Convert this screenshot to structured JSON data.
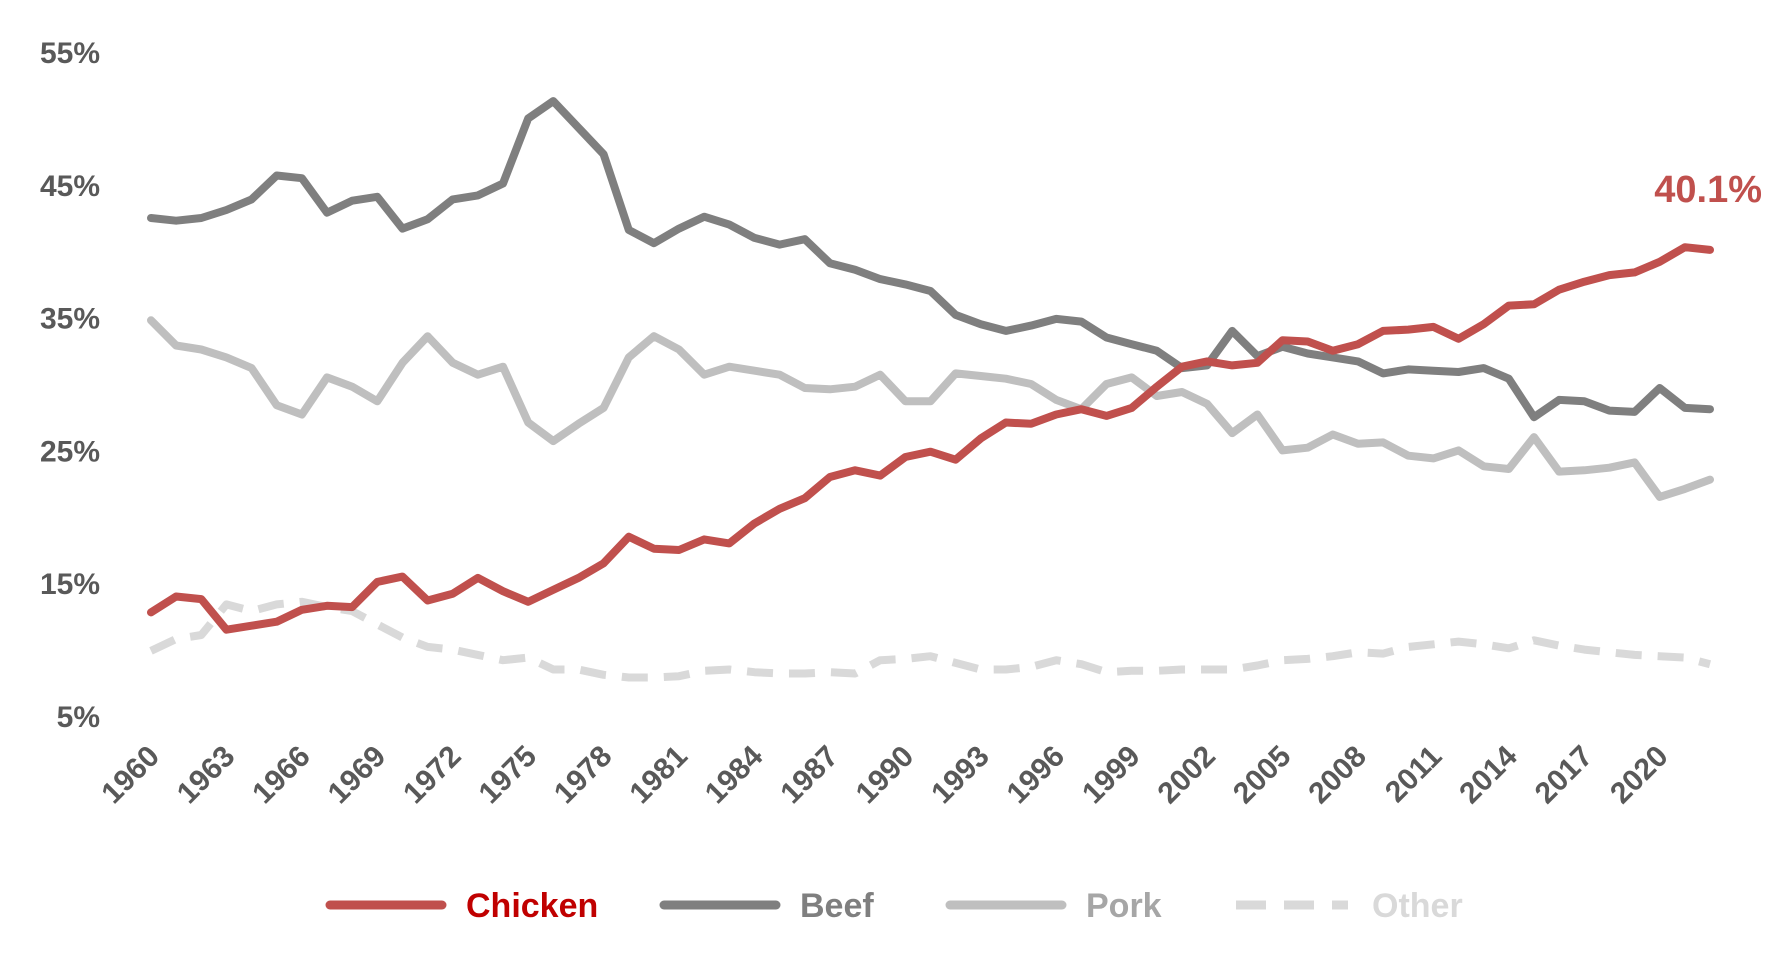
{
  "chart_data": {
    "type": "line",
    "title": "",
    "xlabel": "",
    "ylabel": "",
    "ylim": [
      5,
      55
    ],
    "yticks": [
      "55%",
      "45%",
      "35%",
      "25%",
      "15%",
      "5%"
    ],
    "ytick_values": [
      55,
      45,
      35,
      25,
      15,
      5
    ],
    "xlim": [
      1960,
      2022
    ],
    "xticks": [
      "1960",
      "1963",
      "1966",
      "1969",
      "1972",
      "1975",
      "1978",
      "1981",
      "1984",
      "1987",
      "1990",
      "1993",
      "1996",
      "1999",
      "2002",
      "2005",
      "2008",
      "2011",
      "2014",
      "2017",
      "2020"
    ],
    "xtick_values": [
      1960,
      1963,
      1966,
      1969,
      1972,
      1975,
      1978,
      1981,
      1984,
      1987,
      1990,
      1993,
      1996,
      1999,
      2002,
      2005,
      2008,
      2011,
      2014,
      2017,
      2020
    ],
    "grid": false,
    "legend_position": "bottom",
    "annotation": {
      "text": "40.1%",
      "x": 2022,
      "y": 40.1,
      "color": "#c0504d"
    },
    "x": [
      1960,
      1961,
      1962,
      1963,
      1964,
      1965,
      1966,
      1967,
      1968,
      1969,
      1970,
      1971,
      1972,
      1973,
      1974,
      1975,
      1976,
      1977,
      1978,
      1979,
      1980,
      1981,
      1982,
      1983,
      1984,
      1985,
      1986,
      1987,
      1988,
      1989,
      1990,
      1991,
      1992,
      1993,
      1994,
      1995,
      1996,
      1997,
      1998,
      1999,
      2000,
      2001,
      2002,
      2003,
      2004,
      2005,
      2006,
      2007,
      2008,
      2009,
      2010,
      2011,
      2012,
      2013,
      2014,
      2015,
      2016,
      2017,
      2018,
      2019,
      2020,
      2021,
      2022
    ],
    "series": [
      {
        "name": "Chicken",
        "color": "#c0504d",
        "label_color": "#c00000",
        "dash": false,
        "values": [
          12.8,
          14.0,
          13.8,
          11.5,
          11.8,
          12.1,
          13.0,
          13.3,
          13.2,
          15.1,
          15.5,
          13.7,
          14.2,
          15.4,
          14.4,
          13.6,
          14.5,
          15.4,
          16.5,
          18.5,
          17.6,
          17.5,
          18.3,
          18.0,
          19.5,
          20.6,
          21.4,
          23.0,
          23.5,
          23.1,
          24.5,
          24.9,
          24.3,
          25.9,
          27.1,
          27.0,
          27.7,
          28.1,
          27.6,
          28.2,
          29.8,
          31.3,
          31.7,
          31.4,
          31.6,
          33.3,
          33.2,
          32.5,
          33.0,
          34.0,
          34.1,
          34.3,
          33.4,
          34.5,
          35.9,
          36.0,
          37.1,
          37.7,
          38.2,
          38.4,
          39.2,
          40.3,
          40.1
        ]
      },
      {
        "name": "Beef",
        "color": "#7f7f7f",
        "label_color": "#7f7f7f",
        "dash": false,
        "values": [
          42.5,
          42.3,
          42.5,
          43.1,
          43.9,
          45.7,
          45.5,
          42.9,
          43.8,
          44.1,
          41.7,
          42.4,
          43.9,
          44.2,
          45.1,
          50.0,
          51.3,
          49.3,
          47.3,
          41.6,
          40.6,
          41.7,
          42.6,
          42.0,
          41.0,
          40.5,
          40.9,
          39.1,
          38.6,
          37.9,
          37.5,
          37.0,
          35.2,
          34.5,
          34.0,
          34.4,
          34.9,
          34.7,
          33.5,
          33.0,
          32.5,
          31.2,
          31.4,
          34.0,
          32.1,
          32.8,
          32.3,
          32.0,
          31.7,
          30.8,
          31.1,
          31.0,
          30.9,
          31.2,
          30.4,
          27.5,
          28.8,
          28.7,
          28.0,
          27.9,
          29.7,
          28.2,
          28.1
        ]
      },
      {
        "name": "Pork",
        "color": "#bfbfbf",
        "label_color": "#a6a6a6",
        "dash": false,
        "values": [
          34.8,
          32.9,
          32.6,
          32.0,
          31.2,
          28.4,
          27.7,
          30.5,
          29.8,
          28.7,
          31.6,
          33.6,
          31.6,
          30.7,
          31.3,
          27.1,
          25.7,
          27.0,
          28.2,
          32.0,
          33.6,
          32.6,
          30.7,
          31.3,
          31.0,
          30.7,
          29.7,
          29.6,
          29.8,
          30.7,
          28.7,
          28.7,
          30.8,
          30.6,
          30.4,
          30.0,
          28.8,
          28.1,
          30.0,
          30.5,
          29.1,
          29.4,
          28.5,
          26.3,
          27.7,
          25.0,
          25.2,
          26.2,
          25.5,
          25.6,
          24.6,
          24.4,
          25.0,
          23.8,
          23.6,
          26.0,
          23.4,
          23.5,
          23.7,
          24.1,
          21.5,
          22.1,
          22.8
        ]
      },
      {
        "name": "Other",
        "color": "#d9d9d9",
        "label_color": "#d9d9d9",
        "dash": true,
        "values": [
          9.9,
          10.8,
          11.1,
          13.4,
          12.9,
          13.4,
          13.6,
          13.2,
          12.9,
          11.9,
          10.9,
          10.2,
          10.0,
          9.6,
          9.2,
          9.4,
          8.5,
          8.5,
          8.1,
          7.9,
          7.9,
          8.0,
          8.4,
          8.5,
          8.3,
          8.2,
          8.2,
          8.3,
          8.2,
          9.2,
          9.3,
          9.5,
          9.0,
          8.5,
          8.5,
          8.7,
          9.2,
          8.9,
          8.3,
          8.4,
          8.4,
          8.5,
          8.5,
          8.5,
          8.8,
          9.2,
          9.3,
          9.5,
          9.8,
          9.7,
          10.2,
          10.4,
          10.6,
          10.4,
          10.1,
          10.7,
          10.3,
          10.0,
          9.8,
          9.6,
          9.5,
          9.4,
          8.9
        ]
      }
    ]
  }
}
